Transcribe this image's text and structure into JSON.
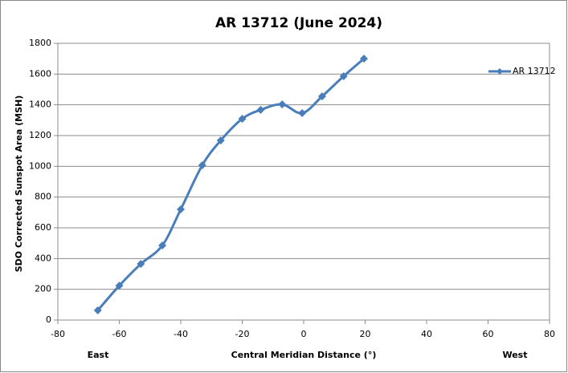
{
  "chart_data": {
    "type": "line",
    "title": "AR 13712 (June 2024)",
    "xlabel": "Central Meridian Distance  (°)",
    "ylabel": "SDO Corrected Sunspot Area (MSH)",
    "annotations": [
      "East",
      "West"
    ],
    "x": [
      -67,
      -60,
      -53,
      -46,
      -40,
      -33,
      -27,
      -20,
      -14,
      -7,
      -0.5,
      6,
      13,
      19.6
    ],
    "series": [
      {
        "name": "AR 13712",
        "color": "#4a7ebb",
        "values": [
          63,
          224,
          365,
          485,
          720,
          1007,
          1168,
          1309,
          1367,
          1403,
          1346,
          1455,
          1586,
          1700
        ]
      }
    ],
    "xlim": [
      -80,
      80
    ],
    "xticks": [
      -80,
      -60,
      -40,
      -20,
      0,
      20,
      40,
      60,
      80
    ],
    "ylim": [
      0,
      1800
    ],
    "yticks": [
      0,
      200,
      400,
      600,
      800,
      1000,
      1200,
      1400,
      1600,
      1800
    ],
    "grid": true,
    "smooth": true,
    "legend": "right"
  }
}
